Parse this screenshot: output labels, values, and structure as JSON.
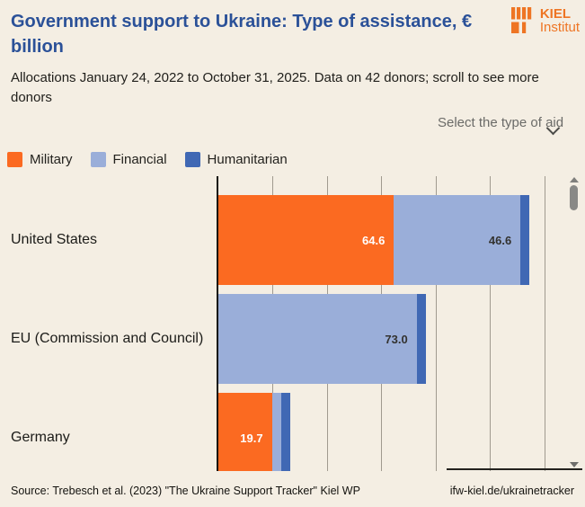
{
  "header": {
    "title": "Government support to Ukraine: Type of assistance, € billion",
    "subtitle": "Allocations January 24, 2022 to October 31, 2025. Data on 42 donors; scroll to see more donors",
    "logo": {
      "line1": "KIEL",
      "line2": "Institut",
      "color": "#ee7524"
    }
  },
  "controls": {
    "aid_select_label": "Select the type of aid"
  },
  "legend": [
    {
      "label": "Military",
      "color": "#fb6a21"
    },
    {
      "label": "Financial",
      "color": "#9aaed9"
    },
    {
      "label": "Humanitarian",
      "color": "#4068b4"
    }
  ],
  "chart_data": {
    "type": "bar",
    "orientation": "horizontal",
    "stacked": true,
    "title": "Government support to Ukraine: Type of assistance, € billion",
    "categories": [
      "United States",
      "EU (Commission and Council)",
      "Germany"
    ],
    "series": [
      {
        "name": "Military",
        "color": "#fb6a21",
        "label_color": "#ffffff",
        "values": [
          64.6,
          0,
          19.7
        ],
        "labels": [
          "64.6",
          "",
          "19.7"
        ]
      },
      {
        "name": "Financial",
        "color": "#9aaed9",
        "label_color": "#33322f",
        "values": [
          46.6,
          73.0,
          1.0
        ],
        "labels": [
          "46.6",
          "73.0",
          ""
        ]
      },
      {
        "name": "Humanitarian",
        "color": "#4068b4",
        "label_color": "#ffffff",
        "values": [
          3.3,
          2.9,
          3.6
        ],
        "labels": [
          "",
          "",
          ""
        ]
      }
    ],
    "xlim": [
      0,
      126
    ],
    "grid_interval": 20,
    "grid": true,
    "legend_position": "top-left",
    "scroll_note": "more donors below (vertical scrollbar visible)"
  },
  "footer": {
    "source": "Source: Trebesch et al. (2023) \"The Ukraine Support Tracker\" Kiel WP",
    "link": "ifw-kiel.de/ukrainetracker"
  }
}
